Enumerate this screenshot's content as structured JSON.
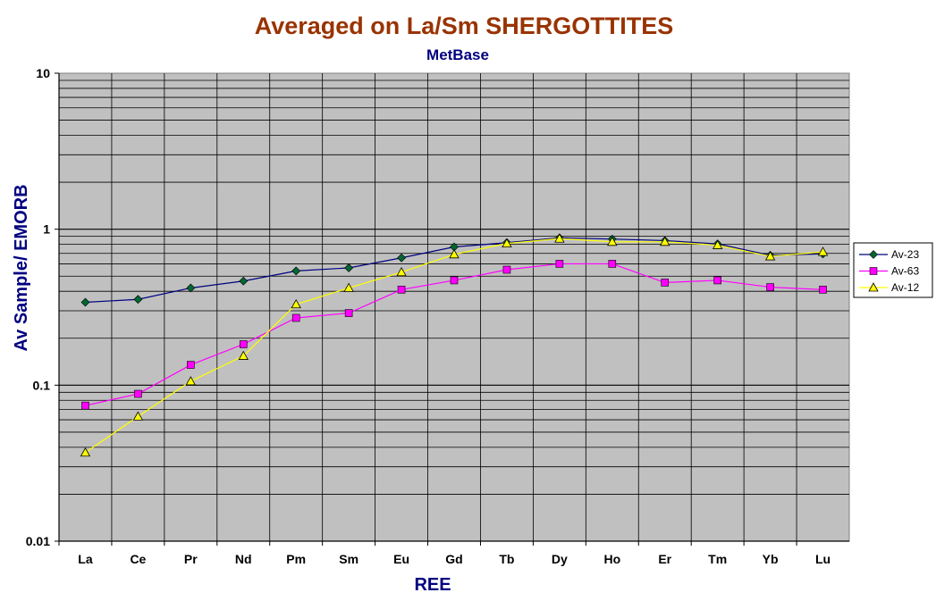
{
  "chart_data": {
    "type": "line",
    "title": "Averaged on La/Sm SHERGOTTITES",
    "subtitle": "MetBase",
    "xlabel": "REE",
    "ylabel": "Av Sample/ EMORB",
    "yscale": "log",
    "ylim": [
      0.01,
      10
    ],
    "y_tick_labels": [
      "0.01",
      "0.1",
      "1",
      "10"
    ],
    "grid": true,
    "legend_position": "right",
    "categories": [
      "La",
      "Ce",
      "Pr",
      "Nd",
      "Pm",
      "Sm",
      "Eu",
      "Gd",
      "Tb",
      "Dy",
      "Ho",
      "Er",
      "Tm",
      "Yb",
      "Lu"
    ],
    "series": [
      {
        "name": "Av-23",
        "color": "#000080",
        "marker": "diamond",
        "marker_color": "#006633",
        "values": [
          0.34,
          0.355,
          0.42,
          0.465,
          0.54,
          0.565,
          0.655,
          0.77,
          0.82,
          0.88,
          0.865,
          0.845,
          0.805,
          0.68,
          0.695
        ]
      },
      {
        "name": "Av-63",
        "color": "#FF00FF",
        "marker": "square",
        "marker_color": "#FF00FF",
        "values": [
          0.074,
          0.088,
          0.135,
          0.183,
          0.27,
          0.29,
          0.41,
          0.47,
          0.55,
          0.6,
          0.6,
          0.455,
          0.47,
          0.425,
          0.41
        ]
      },
      {
        "name": "Av-12",
        "color": "#FFFF00",
        "marker": "triangle",
        "marker_color": "#FFFF00",
        "values": [
          0.037,
          0.063,
          0.106,
          0.154,
          0.33,
          0.42,
          0.53,
          0.69,
          0.81,
          0.87,
          0.83,
          0.83,
          0.79,
          0.67,
          0.715
        ]
      }
    ],
    "style": {
      "plot_background": "#C0C0C0",
      "gridline_color": "#000000",
      "title_color": "#993300",
      "label_color": "#000080"
    }
  }
}
